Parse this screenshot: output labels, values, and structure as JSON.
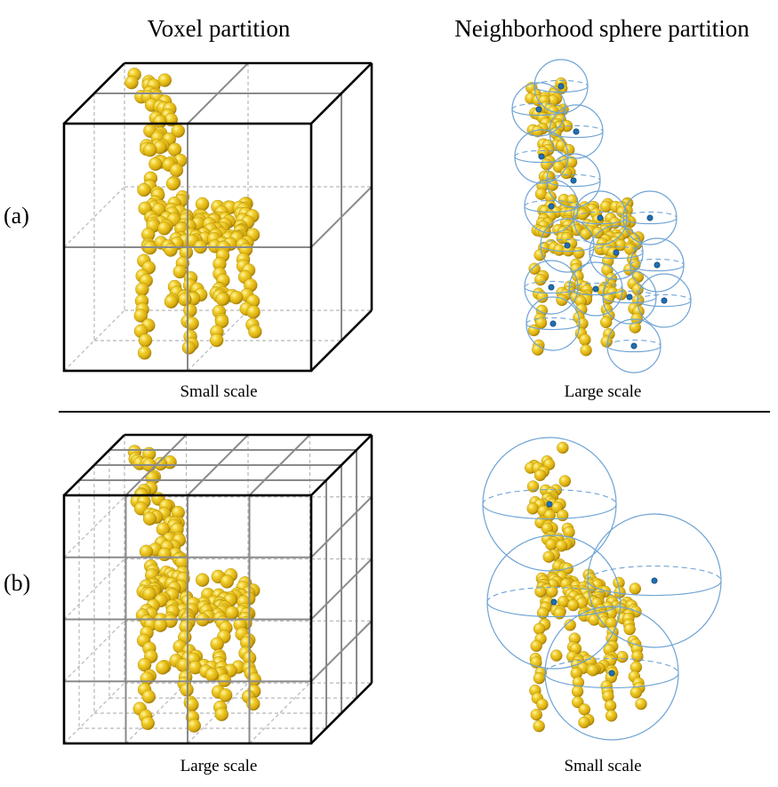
{
  "headers": {
    "left": "Voxel partition",
    "right": "Neighborhood sphere partition"
  },
  "rows": [
    {
      "label": "(a)",
      "left_caption": "Small scale",
      "right_caption": "Large scale"
    },
    {
      "label": "(b)",
      "left_caption": "Large scale",
      "right_caption": "Small scale"
    }
  ],
  "colors": {
    "point": "#e8c21c",
    "point_shadow": "#a98a08",
    "sphere": "#6fa3d4",
    "center": "#1f6fb2",
    "cube": "#000000",
    "grid": "#9a9a9a"
  }
}
